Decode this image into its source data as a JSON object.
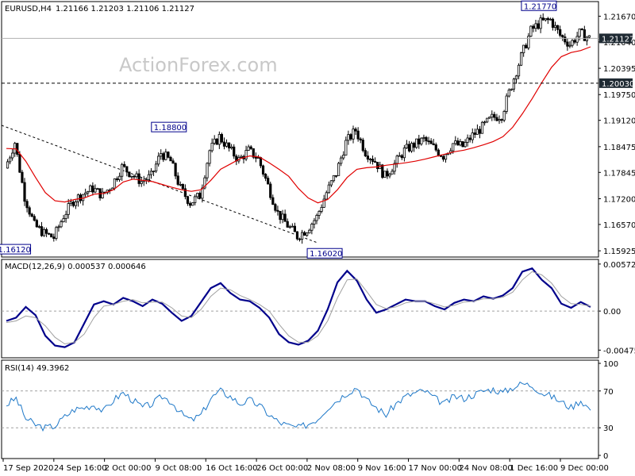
{
  "header": {
    "instrument": "EURUSD,H4",
    "ohlc": "1.21166 1.21203 1.21106 1.21127"
  },
  "watermark": "ActionForex.com",
  "colors": {
    "candles": "#000000",
    "ma": "#e00000",
    "macd": "#00008b",
    "signal": "#a0a0a0",
    "rsi": "#1e78c8",
    "price_tag_bg": "#1f2a33",
    "label_border": "#00008b",
    "label_text": "#00008b"
  },
  "chart_data": [
    {
      "type": "candlestick",
      "price_axis_ticks": [
        "1.21670",
        "1.21040",
        "1.20395",
        "1.19750",
        "1.19120",
        "1.18475",
        "1.17845",
        "1.17200",
        "1.16570",
        "1.15925"
      ],
      "ylim": [
        1.1585,
        1.2195
      ],
      "current_price": "1.21127",
      "level_lines": [
        {
          "value": 1.2003,
          "label": "1.20030",
          "style": "dashed"
        }
      ],
      "annotations": [
        {
          "label": "1.16120",
          "price": 1.1612,
          "date": "21 Sep"
        },
        {
          "label": "1.18800",
          "price": 1.188,
          "date": "13 Oct"
        },
        {
          "label": "1.16020",
          "price": 1.1602,
          "date": "4 Nov"
        },
        {
          "label": "1.21770",
          "price": 1.2177,
          "date": "4 Dec"
        }
      ],
      "series": [
        {
          "kind": "close",
          "dates": [
            "17 Sep",
            "18 Sep",
            "21 Sep",
            "22 Sep",
            "23 Sep",
            "24 Sep",
            "25 Sep",
            "28 Sep",
            "29 Sep",
            "30 Sep",
            "1 Oct",
            "2 Oct",
            "5 Oct",
            "6 Oct",
            "7 Oct",
            "8 Oct",
            "9 Oct",
            "12 Oct",
            "13 Oct",
            "14 Oct",
            "15 Oct",
            "16 Oct",
            "19 Oct",
            "20 Oct",
            "21 Oct",
            "22 Oct",
            "23 Oct",
            "26 Oct",
            "27 Oct",
            "28 Oct",
            "29 Oct",
            "30 Oct",
            "2 Nov",
            "3 Nov",
            "4 Nov",
            "5 Nov",
            "6 Nov",
            "9 Nov",
            "10 Nov",
            "11 Nov",
            "12 Nov",
            "13 Nov",
            "16 Nov",
            "17 Nov",
            "18 Nov",
            "19 Nov",
            "20 Nov",
            "23 Nov",
            "24 Nov",
            "25 Nov",
            "26 Nov",
            "27 Nov",
            "30 Nov",
            "1 Dec",
            "2 Dec",
            "3 Dec",
            "4 Dec",
            "7 Dec",
            "8 Dec",
            "9 Dec",
            "10 Dec"
          ],
          "values": [
            1.1795,
            1.1858,
            1.1725,
            1.1655,
            1.1635,
            1.1625,
            1.1678,
            1.1715,
            1.1732,
            1.1745,
            1.1728,
            1.1755,
            1.1798,
            1.178,
            1.1762,
            1.1775,
            1.1832,
            1.1812,
            1.1745,
            1.171,
            1.1728,
            1.1838,
            1.1872,
            1.1842,
            1.1815,
            1.1838,
            1.1818,
            1.1752,
            1.1685,
            1.1655,
            1.1628,
            1.1645,
            1.1675,
            1.1735,
            1.1782,
            1.1858,
            1.1888,
            1.1835,
            1.1812,
            1.1775,
            1.1805,
            1.1838,
            1.1852,
            1.1865,
            1.1845,
            1.1825,
            1.1855,
            1.1848,
            1.1875,
            1.1895,
            1.1918,
            1.1925,
            1.1998,
            1.2068,
            1.2132,
            1.2152,
            1.2158,
            1.212,
            1.2098,
            1.2125,
            1.2113
          ]
        },
        {
          "kind": "moving_average",
          "values": [
            1.1843,
            1.1842,
            1.1812,
            1.1772,
            1.1735,
            1.1715,
            1.1712,
            1.1718,
            1.1722,
            1.1731,
            1.1733,
            1.1742,
            1.1761,
            1.1768,
            1.1765,
            1.1762,
            1.1755,
            1.1748,
            1.1742,
            1.1738,
            1.1742,
            1.1765,
            1.1792,
            1.1805,
            1.1818,
            1.1825,
            1.1822,
            1.1808,
            1.1792,
            1.1775,
            1.1745,
            1.1722,
            1.171,
            1.1718,
            1.1742,
            1.1772,
            1.1792,
            1.1796,
            1.1798,
            1.1802,
            1.1805,
            1.1808,
            1.1812,
            1.1817,
            1.1823,
            1.1829,
            1.1835,
            1.1839,
            1.1845,
            1.1852,
            1.186,
            1.1872,
            1.1895,
            1.1928,
            1.1965,
            1.2005,
            1.2042,
            1.2068,
            1.2078,
            1.2083,
            1.2092
          ]
        }
      ]
    },
    {
      "type": "line",
      "title": "MACD(12,26,9) 0.000537 0.000646",
      "y_axis_ticks": [
        "0.005725",
        "0.00",
        "-0.004755"
      ],
      "ylim": [
        -0.0054,
        0.006
      ],
      "zero_line": 0,
      "series": [
        {
          "name": "MACD",
          "values": [
            -0.0012,
            -0.0008,
            0.0005,
            -0.0005,
            -0.003,
            -0.0042,
            -0.0044,
            -0.0038,
            -0.0015,
            0.0008,
            0.0012,
            0.0008,
            0.0016,
            0.0012,
            0.0006,
            0.0014,
            0.0009,
            -0.0002,
            -0.0012,
            -0.0006,
            0.0011,
            0.0028,
            0.0034,
            0.0022,
            0.0014,
            0.0012,
            0.0004,
            -0.0008,
            -0.0028,
            -0.0038,
            -0.0041,
            -0.0036,
            -0.0024,
            0.0002,
            0.0035,
            0.0049,
            0.0037,
            0.0014,
            -0.0002,
            0.0002,
            0.0008,
            0.0014,
            0.0012,
            0.0012,
            0.0006,
            0.0002,
            0.001,
            0.0014,
            0.0012,
            0.0018,
            0.0015,
            0.0019,
            0.0028,
            0.0048,
            0.0052,
            0.0038,
            0.0028,
            0.0009,
            0.0004,
            0.0011,
            0.0005
          ]
        },
        {
          "name": "Signal",
          "values": [
            -0.0014,
            -0.0012,
            -0.0006,
            -0.0008,
            -0.0018,
            -0.0032,
            -0.004,
            -0.0038,
            -0.0028,
            -0.0008,
            0.0006,
            0.0008,
            0.0012,
            0.0014,
            0.001,
            0.0011,
            0.0011,
            0.0004,
            -0.0006,
            -0.0008,
            0.0002,
            0.0018,
            0.0028,
            0.0026,
            0.0019,
            0.0014,
            0.0008,
            0.0,
            -0.0016,
            -0.003,
            -0.0038,
            -0.0038,
            -0.003,
            -0.0012,
            0.0016,
            0.0038,
            0.0039,
            0.0024,
            0.0008,
            0.0003,
            0.0005,
            0.001,
            0.0012,
            0.0012,
            0.0009,
            0.0005,
            0.0007,
            0.0011,
            0.0012,
            0.0015,
            0.0015,
            0.0017,
            0.0023,
            0.0038,
            0.0048,
            0.0044,
            0.0034,
            0.0018,
            0.0009,
            0.0008,
            0.0006
          ]
        }
      ]
    },
    {
      "type": "line",
      "title": "RSI(14) 49.3962",
      "y_axis_ticks": [
        "100",
        "70",
        "30",
        "0"
      ],
      "ylim": [
        0,
        100
      ],
      "levels": [
        70,
        30
      ],
      "series": [
        {
          "name": "RSI",
          "values": [
            55,
            62,
            40,
            33,
            30,
            32,
            42,
            50,
            52,
            55,
            48,
            60,
            68,
            60,
            52,
            56,
            64,
            58,
            45,
            38,
            44,
            62,
            70,
            64,
            56,
            60,
            54,
            44,
            36,
            32,
            30,
            34,
            40,
            52,
            60,
            68,
            74,
            60,
            52,
            44,
            56,
            64,
            68,
            70,
            62,
            56,
            64,
            62,
            66,
            70,
            72,
            68,
            74,
            78,
            76,
            68,
            64,
            58,
            52,
            60,
            49
          ]
        }
      ]
    }
  ],
  "time_axis_labels": [
    "17 Sep 2020",
    "24 Sep 16:00",
    "2 Oct 00:00",
    "9 Oct 08:00",
    "16 Oct 16:00",
    "26 Oct 00:00",
    "2 Nov 08:00",
    "9 Nov 16:00",
    "17 Nov 00:00",
    "24 Nov 08:00",
    "1 Dec 16:00",
    "9 Dec 00:00"
  ]
}
